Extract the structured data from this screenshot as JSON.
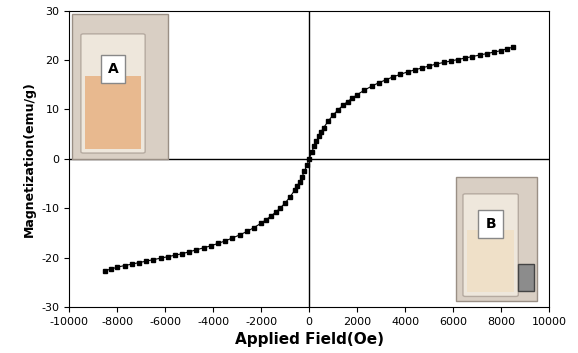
{
  "chart_data": {
    "type": "line",
    "x_label": "Applied Field(Oe)",
    "y_label": "Magnetization(emu/g)",
    "annotations": [
      "A",
      "B"
    ],
    "x": [
      -8500,
      -8250,
      -8000,
      -7700,
      -7400,
      -7100,
      -6800,
      -6500,
      -6200,
      -5900,
      -5600,
      -5300,
      -5000,
      -4700,
      -4400,
      -4100,
      -3800,
      -3500,
      -3200,
      -2900,
      -2600,
      -2300,
      -2000,
      -1800,
      -1600,
      -1400,
      -1200,
      -1000,
      -800,
      -600,
      -500,
      -400,
      -300,
      -200,
      -100,
      0,
      100,
      200,
      300,
      400,
      500,
      600,
      800,
      1000,
      1200,
      1400,
      1600,
      1800,
      2000,
      2300,
      2600,
      2900,
      3200,
      3500,
      3800,
      4100,
      4400,
      4700,
      5000,
      5300,
      5600,
      5900,
      6200,
      6500,
      6800,
      7100,
      7400,
      7700,
      8000,
      8250,
      8500
    ],
    "values": [
      -22.6,
      -22.3,
      -21.9,
      -21.6,
      -21.3,
      -21.0,
      -20.7,
      -20.4,
      -20.1,
      -19.8,
      -19.5,
      -19.2,
      -18.8,
      -18.4,
      -18.0,
      -17.6,
      -17.1,
      -16.6,
      -16.0,
      -15.4,
      -14.7,
      -13.9,
      -13.0,
      -12.3,
      -11.6,
      -10.8,
      -9.9,
      -8.9,
      -7.7,
      -6.3,
      -5.5,
      -4.6,
      -3.6,
      -2.5,
      -1.3,
      0,
      1.3,
      2.5,
      3.6,
      4.6,
      5.5,
      6.3,
      7.7,
      8.9,
      9.9,
      10.8,
      11.6,
      12.3,
      13.0,
      13.9,
      14.7,
      15.4,
      16.0,
      16.6,
      17.1,
      17.6,
      18.0,
      18.4,
      18.8,
      19.2,
      19.5,
      19.8,
      20.1,
      20.4,
      20.7,
      21.0,
      21.3,
      21.6,
      21.9,
      22.3,
      22.6
    ],
    "color": "#000000",
    "marker": "square",
    "xlim": [
      -10000,
      10000
    ],
    "xticks": [
      -10000,
      -8000,
      -6000,
      -4000,
      -2000,
      0,
      2000,
      4000,
      6000,
      8000,
      10000
    ],
    "ylim": [
      -30,
      30
    ],
    "yticks": [
      -30,
      -20,
      -10,
      0,
      10,
      20,
      30
    ]
  }
}
